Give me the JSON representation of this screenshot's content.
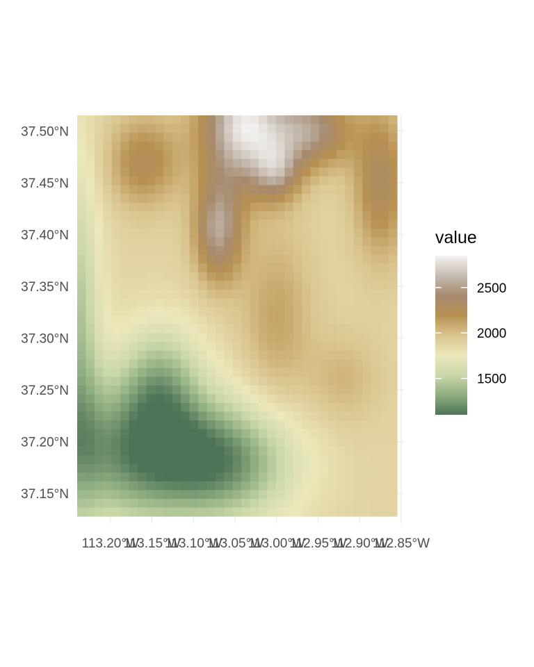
{
  "chart_data": {
    "type": "heatmap",
    "title": "",
    "xlabel": "",
    "ylabel": "",
    "x_range": [
      -113.24,
      -112.855
    ],
    "y_range": [
      37.128,
      37.515
    ],
    "x_ticks": [
      -113.2,
      -113.15,
      -113.1,
      -113.05,
      -113.0,
      -112.95,
      -112.9,
      -112.85
    ],
    "x_tick_labels": [
      "113.20°W",
      "113.15°W",
      "113.10°W",
      "113.05°W",
      "113.00°W",
      "112.95°W",
      "112.90°W",
      "112.85°W"
    ],
    "y_ticks": [
      37.15,
      37.2,
      37.25,
      37.3,
      37.35,
      37.4,
      37.45,
      37.5
    ],
    "y_tick_labels": [
      "37.15°N",
      "37.20°N",
      "37.25°N",
      "37.30°N",
      "37.35°N",
      "37.40°N",
      "37.45°N",
      "37.50°N"
    ],
    "grid": "on",
    "cols": 37,
    "rows": 46,
    "fill_scale": {
      "name": "value",
      "range": [
        1100,
        2850
      ],
      "breaks": [
        1500,
        2000,
        2500
      ],
      "break_labels": [
        "1500",
        "2000",
        "2500"
      ],
      "colors": [
        "#4e7356",
        "#8fae82",
        "#cbd8a8",
        "#ece8bb",
        "#d9c48e",
        "#b89152",
        "#a68a6e",
        "#c6bcb2",
        "#f4f3f1"
      ],
      "legend_position": "right"
    },
    "elevation_model": {
      "base": 1880,
      "components": [
        {
          "type": "gaussian",
          "x": -113.04,
          "y": 37.505,
          "amp": 900,
          "sx": 0.035,
          "sy": 0.04
        },
        {
          "type": "gaussian",
          "x": -113.07,
          "y": 37.405,
          "amp": 650,
          "sx": 0.02,
          "sy": 0.035
        },
        {
          "type": "gaussian",
          "x": -112.96,
          "y": 37.5,
          "amp": 600,
          "sx": 0.035,
          "sy": 0.025
        },
        {
          "type": "gaussian",
          "x": -113.0,
          "y": 37.46,
          "amp": 450,
          "sx": 0.02,
          "sy": 0.02
        },
        {
          "type": "gaussian",
          "x": -112.875,
          "y": 37.45,
          "amp": 430,
          "sx": 0.022,
          "sy": 0.05
        },
        {
          "type": "gaussian",
          "x": -113.16,
          "y": 37.47,
          "amp": 380,
          "sx": 0.03,
          "sy": 0.03
        },
        {
          "type": "gaussian",
          "x": -113.0,
          "y": 37.32,
          "amp": 230,
          "sx": 0.03,
          "sy": 0.06
        },
        {
          "type": "gaussian",
          "x": -112.92,
          "y": 37.26,
          "amp": 160,
          "sx": 0.03,
          "sy": 0.03
        },
        {
          "type": "gaussian",
          "x": -113.17,
          "y": 37.19,
          "amp": -650,
          "sx": 0.07,
          "sy": 0.05
        },
        {
          "type": "gaussian",
          "x": -113.06,
          "y": 37.18,
          "amp": -580,
          "sx": 0.06,
          "sy": 0.04
        },
        {
          "type": "gaussian",
          "x": -113.14,
          "y": 37.26,
          "amp": -400,
          "sx": 0.035,
          "sy": 0.04
        },
        {
          "type": "gaussian",
          "x": -113.24,
          "y": 37.3,
          "amp": -450,
          "sx": 0.02,
          "sy": 0.12
        }
      ]
    }
  }
}
